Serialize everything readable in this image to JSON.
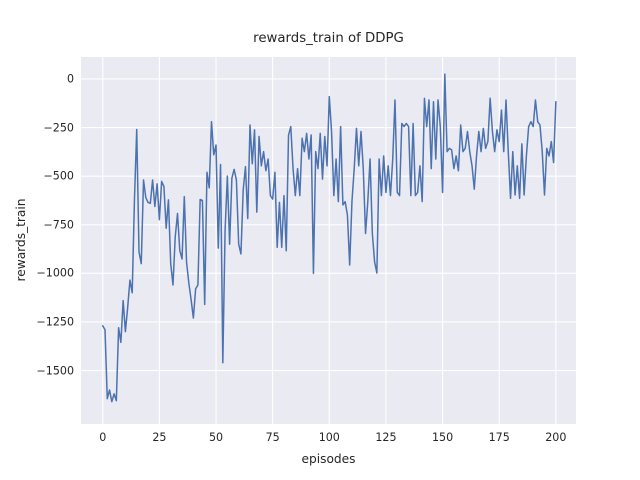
{
  "figure": {
    "title": "rewards_train of DDPG",
    "xlabel": "episodes",
    "ylabel": "rewards_train"
  },
  "chart_data": {
    "type": "line",
    "title": "rewards_train of DDPG",
    "xlabel": "episodes",
    "ylabel": "rewards_train",
    "legend": "none",
    "grid": true,
    "style": "seaborn-darkgrid",
    "plot_bg_color": "#EAEAF2",
    "grid_color": "#FFFFFF",
    "line_color": "#4C72B0",
    "text_color": "#262626",
    "x_ticks": [
      0,
      25,
      50,
      75,
      100,
      125,
      150,
      175,
      200
    ],
    "y_ticks": [
      0,
      -250,
      -500,
      -750,
      -1000,
      -1250,
      -1500
    ],
    "xlim": [
      -9.6,
      208.9
    ],
    "ylim": [
      -1775,
      113
    ],
    "series": [
      {
        "name": "rewards_train",
        "x_start": 0,
        "x_step": 1,
        "values": [
          -1270,
          -1290,
          -1645,
          -1600,
          -1660,
          -1620,
          -1655,
          -1280,
          -1355,
          -1140,
          -1300,
          -1175,
          -1035,
          -1100,
          -620,
          -260,
          -890,
          -950,
          -520,
          -610,
          -635,
          -640,
          -520,
          -656,
          -540,
          -724,
          -527,
          -553,
          -768,
          -622,
          -950,
          -1060,
          -812,
          -692,
          -882,
          -926,
          -605,
          -944,
          -1050,
          -1135,
          -1230,
          -1080,
          -1060,
          -620,
          -625,
          -1160,
          -480,
          -560,
          -220,
          -390,
          -340,
          -870,
          -440,
          -1460,
          -780,
          -500,
          -850,
          -510,
          -465,
          -520,
          -850,
          -900,
          -570,
          -451,
          -718,
          -237,
          -436,
          -262,
          -685,
          -296,
          -447,
          -374,
          -472,
          -412,
          -600,
          -618,
          -480,
          -866,
          -635,
          -866,
          -600,
          -884,
          -290,
          -245,
          -461,
          -600,
          -461,
          -600,
          -305,
          -374,
          -280,
          -412,
          -288,
          -1000,
          -374,
          -461,
          -280,
          -515,
          -296,
          -447,
          -91,
          -270,
          -600,
          -412,
          -631,
          -245,
          -648,
          -631,
          -700,
          -957,
          -631,
          -461,
          -254,
          -447,
          -270,
          -461,
          -795,
          -631,
          -412,
          -795,
          -941,
          -998,
          -412,
          -600,
          -396,
          -584,
          -447,
          -600,
          -412,
          -108,
          -584,
          -600,
          -229,
          -245,
          -229,
          -245,
          -600,
          -229,
          -600,
          -584,
          -447,
          -631,
          -100,
          -245,
          -108,
          -461,
          -117,
          -412,
          -108,
          -245,
          -584,
          25,
          -374,
          -357,
          -365,
          -461,
          -396,
          -472,
          -237,
          -374,
          -357,
          -270,
          -374,
          -447,
          -567,
          -396,
          -270,
          -374,
          -254,
          -357,
          -322,
          -99,
          -270,
          -374,
          -262,
          -322,
          -160,
          -374,
          -108,
          -374,
          -614,
          -374,
          -597,
          -447,
          -614,
          -334,
          -597,
          -396,
          -245,
          -220,
          -245,
          -108,
          -220,
          -237,
          -374,
          -597,
          -357,
          -396,
          -322,
          -430,
          -117
        ]
      }
    ]
  }
}
